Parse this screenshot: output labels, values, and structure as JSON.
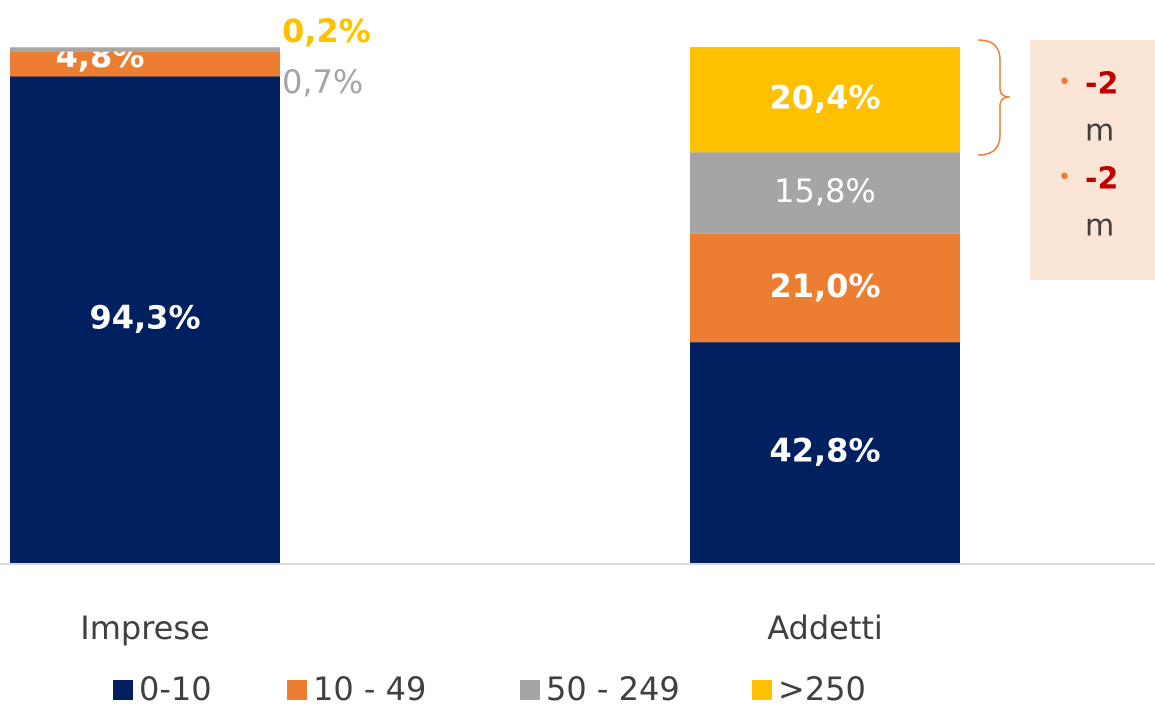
{
  "chart_data": {
    "type": "stacked-bar",
    "categories": [
      "Imprese",
      "Addetti"
    ],
    "series": [
      {
        "name": "0-10",
        "color": "#002060",
        "values": [
          94.3,
          42.8
        ],
        "value_labels": [
          "94,3%",
          "42,8%"
        ]
      },
      {
        "name": "10 - 49",
        "color": "#ed7d31",
        "values": [
          4.8,
          21.0
        ],
        "value_labels": [
          "4,8%",
          "21,0%"
        ]
      },
      {
        "name": "50 - 249",
        "color": "#a5a5a5",
        "values": [
          0.7,
          15.8
        ],
        "value_labels": [
          "0,7%",
          "15,8%"
        ]
      },
      {
        "name": ">250",
        "color": "#ffc000",
        "values": [
          0.2,
          20.4
        ],
        "value_labels": [
          "0,2%",
          "20,4%"
        ]
      }
    ],
    "ylim": [
      0,
      100
    ],
    "annotations": [
      "-2",
      "m",
      "-2",
      "m"
    ]
  }
}
